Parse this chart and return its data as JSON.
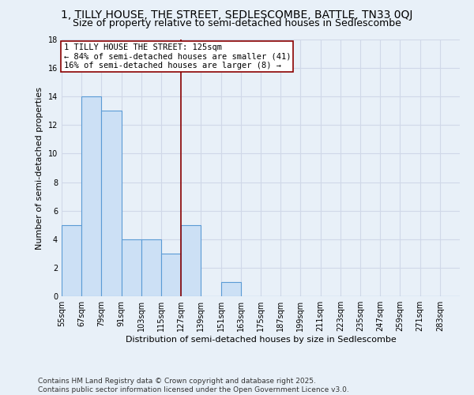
{
  "title": "1, TILLY HOUSE, THE STREET, SEDLESCOMBE, BATTLE, TN33 0QJ",
  "subtitle": "Size of property relative to semi-detached houses in Sedlescombe",
  "xlabel": "Distribution of semi-detached houses by size in Sedlescombe",
  "ylabel": "Number of semi-detached properties",
  "footer_line1": "Contains HM Land Registry data © Crown copyright and database right 2025.",
  "footer_line2": "Contains public sector information licensed under the Open Government Licence v3.0.",
  "annotation_line1": "1 TILLY HOUSE THE STREET: 125sqm",
  "annotation_line2": "← 84% of semi-detached houses are smaller (41)",
  "annotation_line3": "16% of semi-detached houses are larger (8) →",
  "bar_edges": [
    55,
    67,
    79,
    91,
    103,
    115,
    127,
    139,
    151,
    163,
    175,
    187,
    199,
    211,
    223,
    235,
    247,
    259,
    271,
    283,
    295
  ],
  "bar_values": [
    5,
    14,
    13,
    4,
    4,
    3,
    5,
    0,
    1,
    0,
    0,
    0,
    0,
    0,
    0,
    0,
    0,
    0,
    0,
    0
  ],
  "bar_color": "#cce0f5",
  "bar_edge_color": "#5b9bd5",
  "vline_x": 127,
  "vline_color": "#8b0000",
  "ylim": [
    0,
    18
  ],
  "yticks": [
    0,
    2,
    4,
    6,
    8,
    10,
    12,
    14,
    16,
    18
  ],
  "grid_color": "#d0d8e8",
  "background_color": "#e8f0f8",
  "annotation_box_color": "#ffffff",
  "annotation_box_edge": "#8b0000",
  "title_fontsize": 10,
  "subtitle_fontsize": 9,
  "axis_label_fontsize": 8,
  "tick_fontsize": 7,
  "annotation_fontsize": 7.5,
  "footer_fontsize": 6.5
}
